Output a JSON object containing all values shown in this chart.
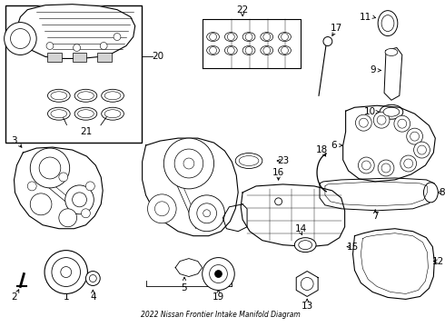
{
  "title": "2022 Nissan Frontier Intake Manifold Diagram",
  "bg_color": "#ffffff",
  "line_color": "#000000",
  "fig_width": 4.9,
  "fig_height": 3.6,
  "dpi": 100
}
